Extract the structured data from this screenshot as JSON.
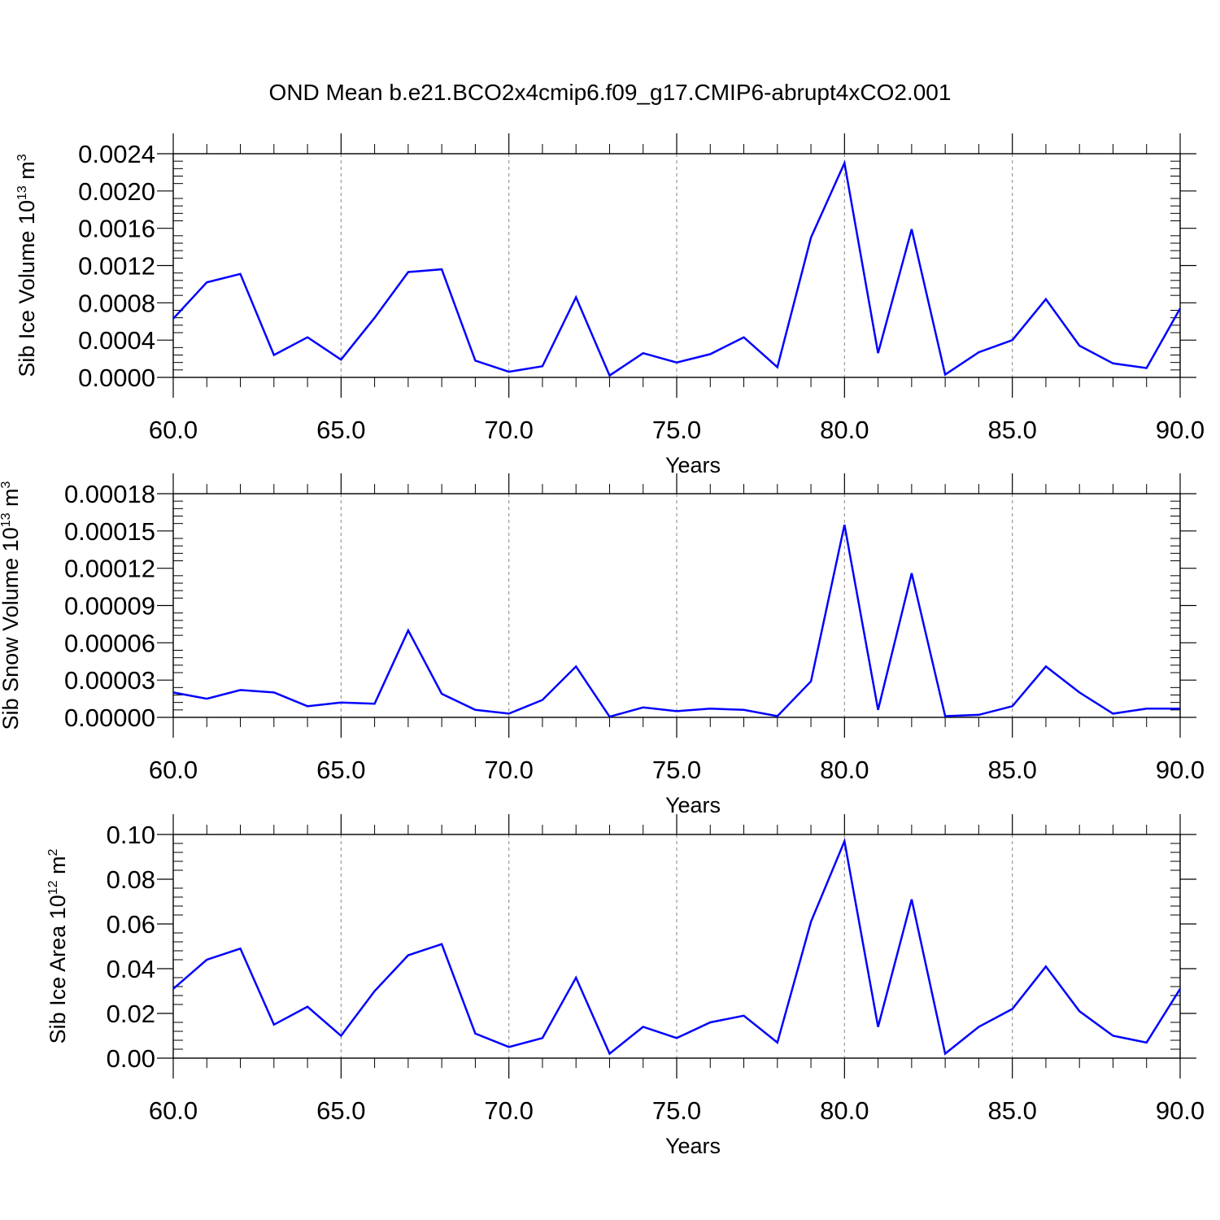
{
  "figure": {
    "title": "OND Mean b.e21.BCO2x4cmip6.f09_g17.CMIP6-abrupt4xCO2.001",
    "line_color": "#0000ff"
  },
  "chart_data": [
    {
      "type": "line",
      "title": "",
      "xlabel": "Years",
      "ylabel_main": "Sib Ice Volume 10",
      "ylabel_exp": "13",
      "ylabel_unit": "m",
      "ylabel_unit_exp": "3",
      "xlim": [
        60,
        90
      ],
      "ylim": [
        0,
        0.0024
      ],
      "xticks": [
        "60.0",
        "65.0",
        "70.0",
        "75.0",
        "80.0",
        "85.0",
        "90.0"
      ],
      "yticks": [
        "0.0000",
        "0.0004",
        "0.0008",
        "0.0012",
        "0.0016",
        "0.0020",
        "0.0024"
      ],
      "grid": "vertical dashed at major x ticks",
      "series": [
        {
          "x": [
            60,
            61,
            62,
            63,
            64,
            65,
            66,
            67,
            68,
            69,
            70,
            71,
            72,
            73,
            74,
            75,
            76,
            77,
            78,
            79,
            80,
            81,
            82,
            83,
            84,
            85,
            86,
            87,
            88,
            89,
            90
          ],
          "values": [
            0.00063,
            0.00102,
            0.00111,
            0.00024,
            0.00043,
            0.00019,
            0.00064,
            0.00113,
            0.00116,
            0.00018,
            6e-05,
            0.00012,
            0.00086,
            2e-05,
            0.00026,
            0.00016,
            0.00025,
            0.00043,
            0.00011,
            0.0015,
            0.0023,
            0.00026,
            0.00159,
            3e-05,
            0.00027,
            0.0004,
            0.00084,
            0.00034,
            0.00015,
            0.0001,
            0.00074
          ]
        }
      ]
    },
    {
      "type": "line",
      "title": "",
      "xlabel": "Years",
      "ylabel_main": "Sib Snow Volume 10",
      "ylabel_exp": "13",
      "ylabel_unit": "m",
      "ylabel_unit_exp": "3",
      "xlim": [
        60,
        90
      ],
      "ylim": [
        0,
        0.00018
      ],
      "xticks": [
        "60.0",
        "65.0",
        "70.0",
        "75.0",
        "80.0",
        "85.0",
        "90.0"
      ],
      "yticks": [
        "0.00000",
        "0.00003",
        "0.00006",
        "0.00009",
        "0.00012",
        "0.00015",
        "0.00018"
      ],
      "grid": "vertical dashed at major x ticks",
      "series": [
        {
          "x": [
            60,
            61,
            62,
            63,
            64,
            65,
            66,
            67,
            68,
            69,
            70,
            71,
            72,
            73,
            74,
            75,
            76,
            77,
            78,
            79,
            80,
            81,
            82,
            83,
            84,
            85,
            86,
            87,
            88,
            89,
            90
          ],
          "values": [
            2e-05,
            1.5e-05,
            2.2e-05,
            2e-05,
            9e-06,
            1.2e-05,
            1.1e-05,
            7e-05,
            1.9e-05,
            6e-06,
            3e-06,
            1.4e-05,
            4.1e-05,
            5e-07,
            8e-06,
            5e-06,
            7e-06,
            6e-06,
            1e-06,
            2.9e-05,
            0.000155,
            6e-06,
            0.000116,
            1e-06,
            2e-06,
            9e-06,
            4.1e-05,
            2e-05,
            3e-06,
            7e-06,
            7e-06
          ]
        }
      ]
    },
    {
      "type": "line",
      "title": "",
      "xlabel": "Years",
      "ylabel_main": "Sib Ice Area 10",
      "ylabel_exp": "12",
      "ylabel_unit": "m",
      "ylabel_unit_exp": "2",
      "xlim": [
        60,
        90
      ],
      "ylim": [
        0,
        0.1
      ],
      "xticks": [
        "60.0",
        "65.0",
        "70.0",
        "75.0",
        "80.0",
        "85.0",
        "90.0"
      ],
      "yticks": [
        "0.00",
        "0.02",
        "0.04",
        "0.06",
        "0.08",
        "0.10"
      ],
      "grid": "vertical dashed at major x ticks",
      "series": [
        {
          "x": [
            60,
            61,
            62,
            63,
            64,
            65,
            66,
            67,
            68,
            69,
            70,
            71,
            72,
            73,
            74,
            75,
            76,
            77,
            78,
            79,
            80,
            81,
            82,
            83,
            84,
            85,
            86,
            87,
            88,
            89,
            90
          ],
          "values": [
            0.031,
            0.044,
            0.049,
            0.015,
            0.023,
            0.01,
            0.03,
            0.046,
            0.051,
            0.011,
            0.005,
            0.009,
            0.036,
            0.002,
            0.014,
            0.009,
            0.016,
            0.019,
            0.007,
            0.061,
            0.097,
            0.014,
            0.071,
            0.002,
            0.014,
            0.022,
            0.041,
            0.021,
            0.01,
            0.007,
            0.031
          ]
        }
      ]
    }
  ]
}
